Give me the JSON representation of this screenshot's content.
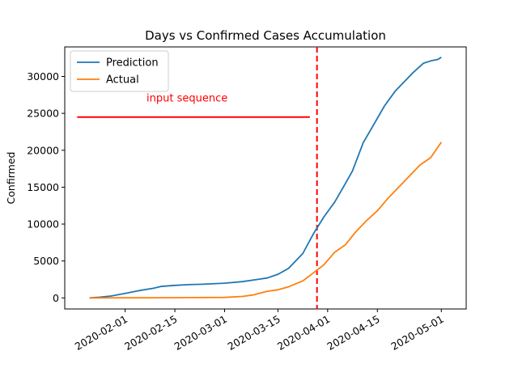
{
  "chart_data": {
    "type": "line",
    "title": "Days vs Confirmed Cases Accumulation",
    "xlabel": "",
    "ylabel": "Confirmed",
    "x_start": "2020-01-22",
    "x_end": "2020-04-30",
    "xlim_days": [
      -7,
      106
    ],
    "ylim": [
      -1500,
      34000
    ],
    "yticks": [
      0,
      5000,
      10000,
      15000,
      20000,
      25000,
      30000
    ],
    "ytick_labels": [
      "0",
      "5000",
      "10000",
      "15000",
      "20000",
      "25000",
      "30000"
    ],
    "xticks_days": [
      10,
      24,
      38,
      53,
      67,
      81,
      99
    ],
    "xtick_labels": [
      "2020-02-01",
      "2020-02-15",
      "2020-03-01",
      "2020-03-15",
      "2020-04-01",
      "2020-04-15",
      "2020-05-01"
    ],
    "legend_position": "top-left",
    "series": [
      {
        "name": "Prediction",
        "color": "#1f77b4",
        "days": [
          0,
          3,
          6,
          10,
          14,
          18,
          20,
          24,
          28,
          32,
          38,
          43,
          48,
          50,
          53,
          56,
          60,
          63,
          66,
          69,
          72,
          74,
          77,
          80,
          83,
          86,
          88,
          91,
          94,
          96,
          98,
          99
        ],
        "values": [
          0,
          100,
          250,
          600,
          1000,
          1300,
          1550,
          1700,
          1800,
          1850,
          2000,
          2200,
          2550,
          2700,
          3200,
          4000,
          6000,
          8700,
          11000,
          13000,
          15500,
          17200,
          21000,
          23500,
          26000,
          28000,
          29000,
          30500,
          31800,
          32100,
          32300,
          32600
        ]
      },
      {
        "name": "Actual",
        "color": "#ff7f0e",
        "days": [
          0,
          10,
          20,
          30,
          38,
          43,
          46,
          50,
          53,
          56,
          60,
          63,
          66,
          69,
          72,
          75,
          78,
          81,
          84,
          87,
          90,
          93,
          96,
          99
        ],
        "values": [
          0,
          10,
          20,
          40,
          70,
          200,
          400,
          900,
          1100,
          1500,
          2300,
          3400,
          4500,
          6200,
          7200,
          9000,
          10500,
          11800,
          13500,
          15000,
          16500,
          18000,
          19000,
          21100
        ]
      }
    ],
    "annotations": [
      {
        "label": "input sequence",
        "color": "#ff0000",
        "y": 24500,
        "x_from_days": -3.5,
        "x_to_days": 62
      }
    ],
    "vline_day": 64,
    "vline_color": "#ff0000"
  }
}
